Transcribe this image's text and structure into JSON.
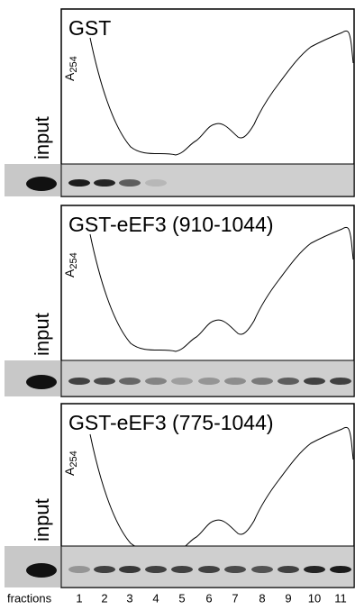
{
  "panels": [
    {
      "title": "GST",
      "y_label": {
        "symbol": "A",
        "subscript": "254"
      },
      "blot_label": "input"
    },
    {
      "title": "GST-eEF3 (910-1044)",
      "y_label": {
        "symbol": "A",
        "subscript": "254"
      },
      "blot_label": "input"
    },
    {
      "title": "GST-eEF3 (775-1044)",
      "y_label": {
        "symbol": "A",
        "subscript": "254"
      },
      "blot_label": "input"
    }
  ],
  "x_label": "fractions",
  "fractions": [
    "1",
    "2",
    "3",
    "4",
    "5",
    "6",
    "7",
    "8",
    "9",
    "10",
    "11"
  ]
}
